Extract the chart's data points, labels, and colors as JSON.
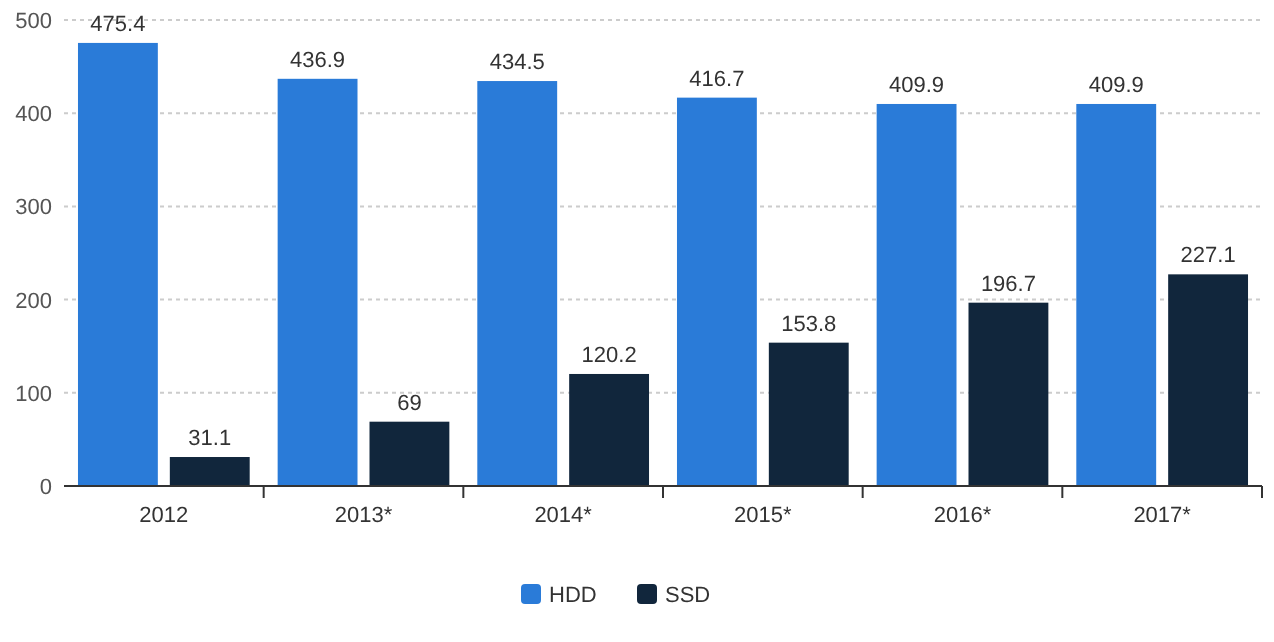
{
  "chart_data": {
    "type": "bar",
    "categories": [
      "2012",
      "2013*",
      "2014*",
      "2015*",
      "2016*",
      "2017*"
    ],
    "series": [
      {
        "name": "HDD",
        "color": "#2a7bd8",
        "values": [
          475.4,
          436.9,
          434.5,
          416.7,
          409.9,
          409.9
        ]
      },
      {
        "name": "SSD",
        "color": "#11263c",
        "values": [
          31.1,
          69,
          120.2,
          153.8,
          196.7,
          227.1
        ]
      }
    ],
    "ylim": [
      0,
      500
    ],
    "yticks": [
      0,
      100,
      200,
      300,
      400,
      500
    ],
    "grid": "y",
    "legend": "bottom",
    "data_labels": true
  }
}
